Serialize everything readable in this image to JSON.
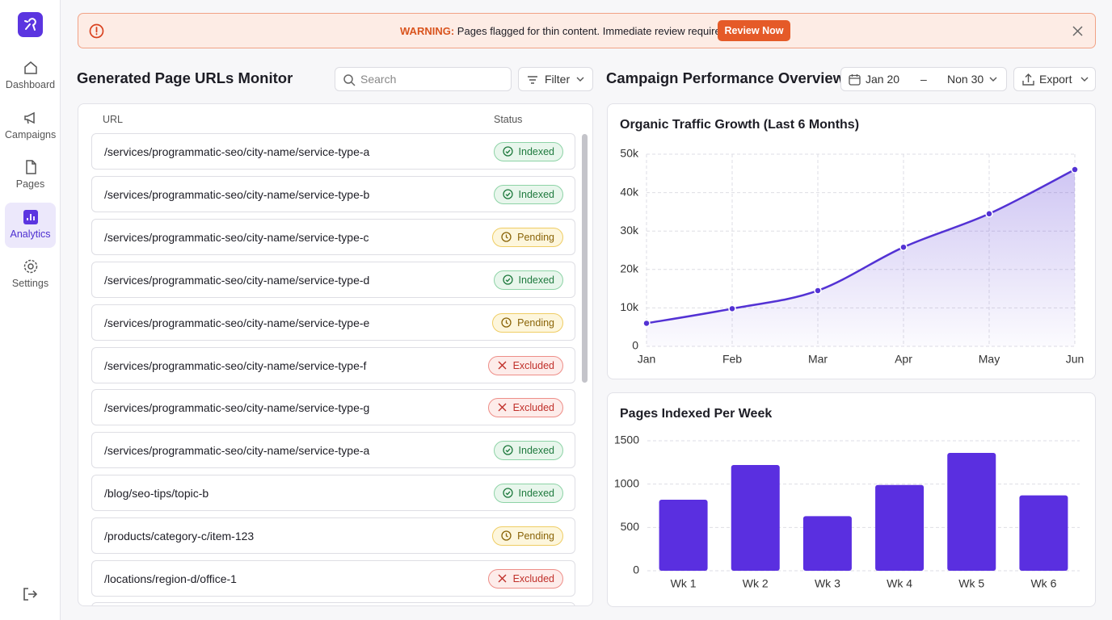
{
  "sidebar": {
    "nav": [
      "Dashboard",
      "Campaigns",
      "Pages",
      "Analytics",
      "Settings"
    ],
    "active": 3
  },
  "alert": {
    "label": "WARNING:",
    "message": "Pages flagged for thin content. Immediate review required.",
    "button": "Review Now"
  },
  "url_monitor": {
    "title": "Generated Page URLs Monitor",
    "search_placeholder": "Search",
    "filter": "Filter",
    "columns": [
      "URL",
      "Status"
    ],
    "rows": [
      {
        "url": "/services/programmatic-seo/city-name/service-type-a",
        "status": "Indexed",
        "status_color": "green"
      },
      {
        "url": "/services/programmatic-seo/city-name/service-type-b",
        "status": "Indexed",
        "status_color": "green"
      },
      {
        "url": "/services/programmatic-seo/city-name/service-type-c",
        "status": "Pending",
        "status_color": "amber"
      },
      {
        "url": "/services/programmatic-seo/city-name/service-type-d",
        "status": "Indexed",
        "status_color": "green"
      },
      {
        "url": "/services/programmatic-seo/city-name/service-type-e",
        "status": "Pending",
        "status_color": "amber"
      },
      {
        "url": "/services/programmatic-seo/city-name/service-type-f",
        "status": "Excluded",
        "status_color": "red"
      },
      {
        "url": "/services/programmatic-seo/city-name/service-type-g",
        "status": "Excluded",
        "status_color": "red"
      },
      {
        "url": "/services/programmatic-seo/city-name/service-type-a",
        "status": "Indexed",
        "status_color": "green"
      },
      {
        "url": "/blog/seo-tips/topic-b",
        "status": "Indexed",
        "status_color": "green"
      },
      {
        "url": "/products/category-c/item-123",
        "status": "Pending",
        "status_color": "amber"
      },
      {
        "url": "/locations/region-d/office-1",
        "status": "Excluded",
        "status_color": "red"
      }
    ]
  },
  "overview": {
    "title": "Campaign Performance Overview",
    "date_from": "Jan 20",
    "date_sep": "–",
    "date_to": "Non 30",
    "export": "Export"
  },
  "chart_data": [
    {
      "type": "line",
      "title": "Organic Traffic Growth (Last 6 Months)",
      "categories": [
        "Jan",
        "Feb",
        "Mar",
        "Apr",
        "May",
        "Jun"
      ],
      "values": [
        6000,
        9800,
        14500,
        25800,
        34500,
        46000
      ],
      "color": "#5332d4",
      "ylim": [
        0,
        50000
      ],
      "yticks": [
        0,
        {
          "value": 10000,
          "label": "10k"
        },
        {
          "value": 20000,
          "label": "20k"
        },
        {
          "value": 30000,
          "label": "30k"
        },
        {
          "value": 40000,
          "label": "40k"
        },
        {
          "value": 50000,
          "label": "50k"
        }
      ],
      "grid": true
    },
    {
      "type": "bar",
      "title": "Pages Indexed Per Week",
      "categories": [
        "Wk 1",
        "Wk 2",
        "Wk 3",
        "Wk 4",
        "Wk 5",
        "Wk 6"
      ],
      "values": [
        820,
        1220,
        630,
        990,
        1360,
        870
      ],
      "color": "#5a2fe0",
      "ylim": [
        0,
        1500
      ],
      "yticks": [
        0,
        500,
        1000,
        1500
      ],
      "grid": true
    }
  ]
}
